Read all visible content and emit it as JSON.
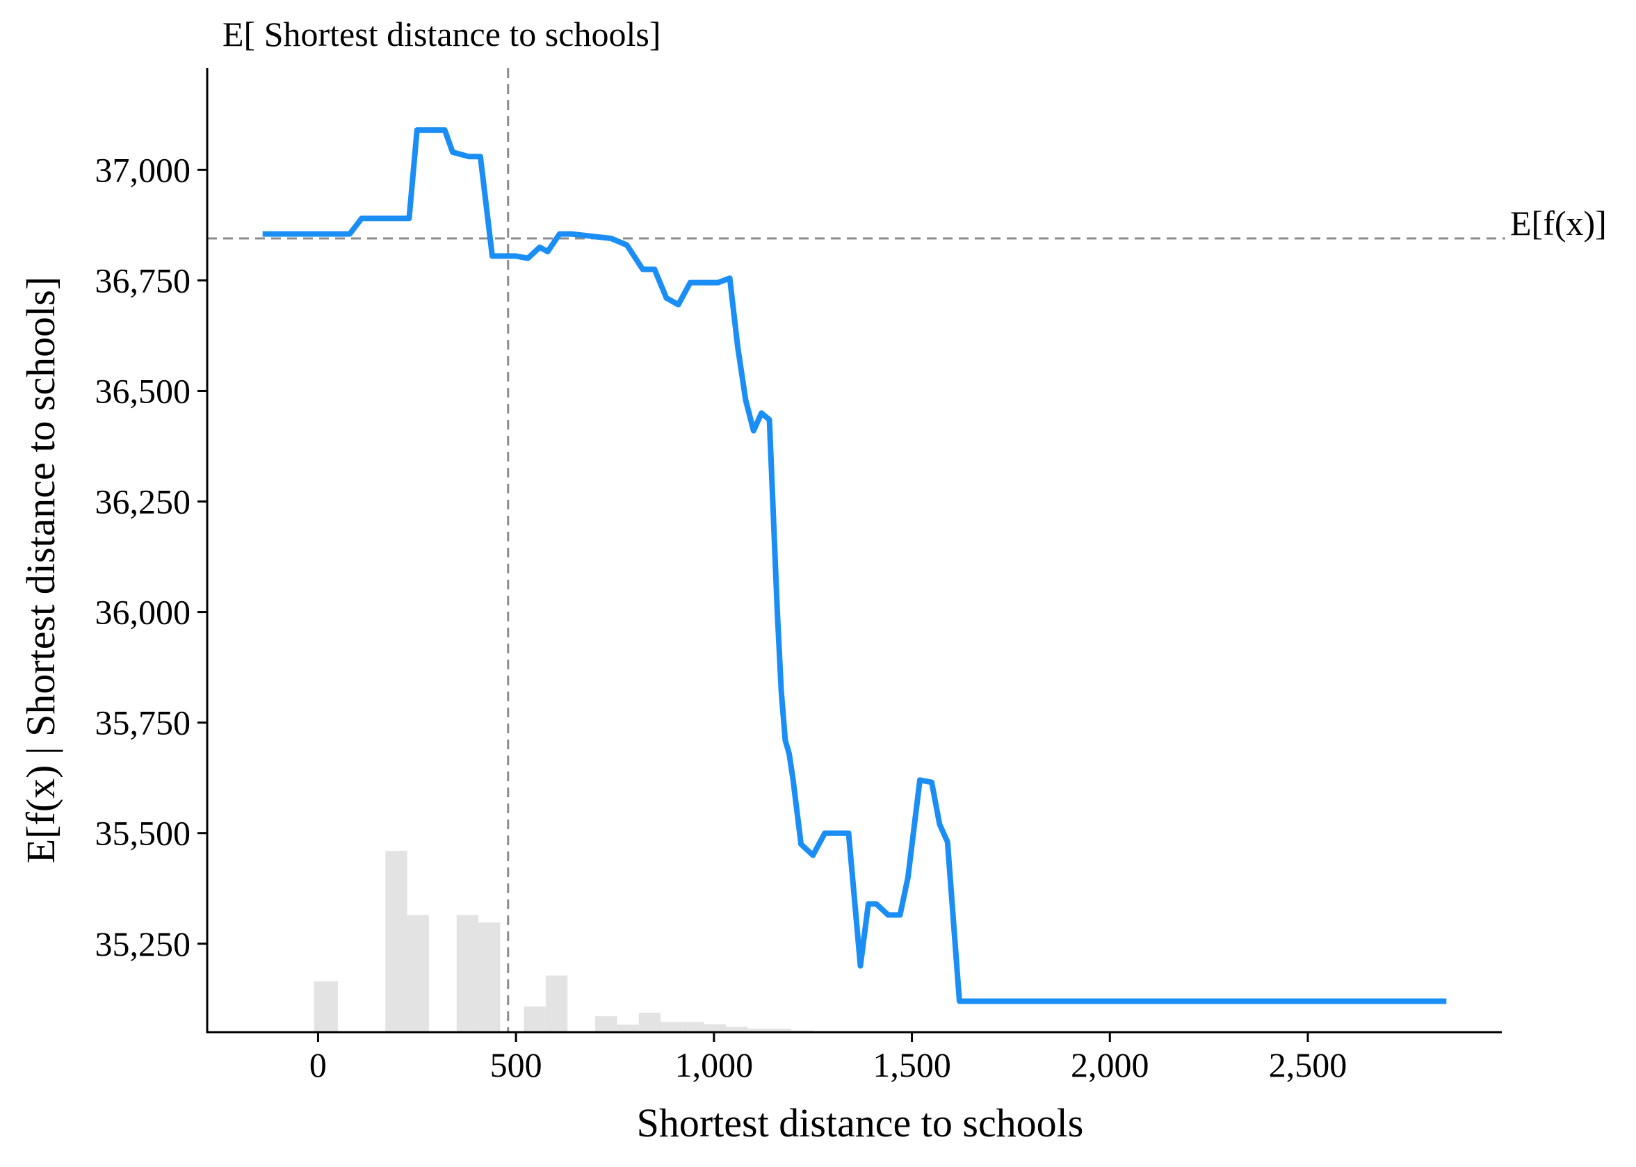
{
  "chart_data": {
    "type": "line",
    "title": "",
    "xlabel": "Shortest distance to schools",
    "ylabel": "E[f(x) | Shortest distance to schools]",
    "xlim": [
      -280,
      2990
    ],
    "ylim": [
      35050,
      37230
    ],
    "x_ticks": [
      0,
      500,
      1000,
      1500,
      2000,
      2500
    ],
    "x_tick_labels": [
      "0",
      "500",
      "1,000",
      "1,500",
      "2,000",
      "2,500"
    ],
    "y_ticks": [
      35250,
      35500,
      35750,
      36000,
      36250,
      36500,
      36750,
      37000
    ],
    "y_tick_labels": [
      "35,250",
      "35,500",
      "35,750",
      "36,000",
      "36,250",
      "36,500",
      "36,750",
      "37,000"
    ],
    "grid": false,
    "reference_lines": {
      "expected_value_y": 36845,
      "expected_value_label": "E[f(x)]",
      "feature_mean_x": 480,
      "feature_mean_label": "E[ Shortest distance to schools]"
    },
    "series": [
      {
        "color": "#1a8ef5",
        "x": [
          -140,
          -60,
          20,
          80,
          110,
          160,
          200,
          230,
          250,
          260,
          290,
          320,
          340,
          380,
          410,
          440,
          465,
          500,
          530,
          560,
          580,
          610,
          640,
          690,
          740,
          780,
          820,
          850,
          880,
          910,
          940,
          970,
          1010,
          1040,
          1060,
          1080,
          1100,
          1120,
          1140,
          1160,
          1170,
          1180,
          1190,
          1200,
          1220,
          1250,
          1280,
          1310,
          1340,
          1370,
          1390,
          1410,
          1440,
          1470,
          1490,
          1520,
          1550,
          1570,
          1590,
          1620,
          1640,
          1660,
          1690,
          1760,
          1860,
          2100,
          2400,
          2700,
          2850
        ],
        "y": [
          36855,
          36855,
          36855,
          36855,
          36890,
          36890,
          36890,
          36890,
          37090,
          37090,
          37090,
          37090,
          37040,
          37030,
          37030,
          36805,
          36805,
          36805,
          36800,
          36825,
          36815,
          36855,
          36855,
          36850,
          36845,
          36830,
          36775,
          36775,
          36710,
          36695,
          36745,
          36745,
          36745,
          36755,
          36600,
          36480,
          36410,
          36450,
          36435,
          36000,
          35820,
          35710,
          35680,
          35620,
          35475,
          35450,
          35500,
          35500,
          35500,
          35200,
          35340,
          35340,
          35315,
          35315,
          35400,
          35620,
          35615,
          35520,
          35480,
          35120,
          35120,
          35120,
          35120,
          35120,
          35120,
          35120,
          35120,
          35120,
          35120
        ]
      }
    ],
    "histogram": {
      "color": "#e3e3e3",
      "bins": [
        {
          "x0": -10,
          "x1": 50,
          "y": 35165
        },
        {
          "x0": 170,
          "x1": 225,
          "y": 35460
        },
        {
          "x0": 225,
          "x1": 280,
          "y": 35315
        },
        {
          "x0": 350,
          "x1": 405,
          "y": 35315
        },
        {
          "x0": 405,
          "x1": 460,
          "y": 35298
        },
        {
          "x0": 520,
          "x1": 575,
          "y": 35108
        },
        {
          "x0": 575,
          "x1": 630,
          "y": 35178
        },
        {
          "x0": 700,
          "x1": 755,
          "y": 35086
        },
        {
          "x0": 755,
          "x1": 810,
          "y": 35067
        },
        {
          "x0": 810,
          "x1": 865,
          "y": 35094
        },
        {
          "x0": 865,
          "x1": 920,
          "y": 35073
        },
        {
          "x0": 920,
          "x1": 975,
          "y": 35073
        },
        {
          "x0": 975,
          "x1": 1030,
          "y": 35068
        },
        {
          "x0": 1030,
          "x1": 1085,
          "y": 35062
        },
        {
          "x0": 1085,
          "x1": 1140,
          "y": 35058
        },
        {
          "x0": 1140,
          "x1": 1195,
          "y": 35058
        },
        {
          "x0": 1195,
          "x1": 1250,
          "y": 35054
        },
        {
          "x0": 1250,
          "x1": 1305,
          "y": 35052
        },
        {
          "x0": 1305,
          "x1": 1360,
          "y": 35050
        },
        {
          "x0": 1360,
          "x1": 1415,
          "y": 35052
        }
      ]
    }
  }
}
